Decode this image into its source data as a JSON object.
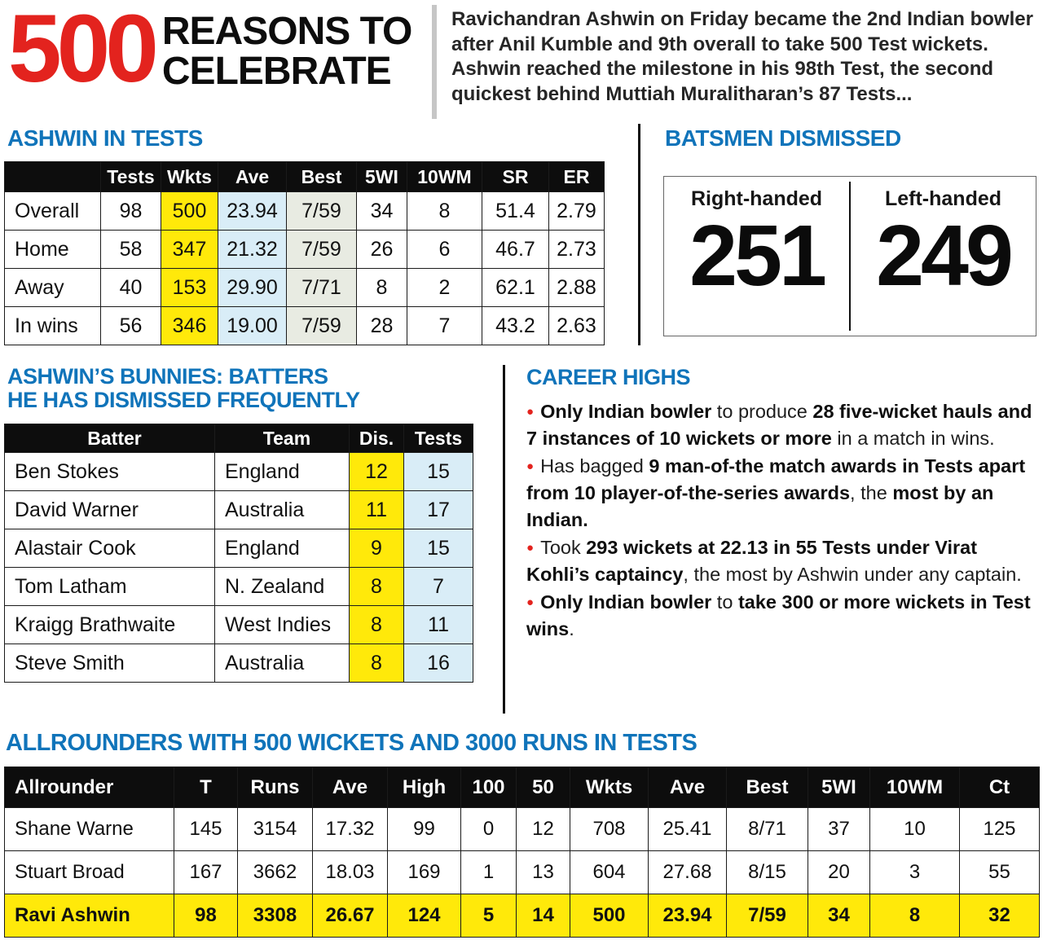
{
  "colors": {
    "red": "#e3231e",
    "blue": "#1074ba",
    "yellow": "#ffe90a",
    "light_blue": "#d9edf7",
    "light_gray": "#e8ebe2",
    "header_black": "#0d0d0d"
  },
  "header": {
    "big_number": "500",
    "title_line1": "REASONS TO",
    "title_line2": "CELEBRATE",
    "intro": "Ravichandran Ashwin on Friday became the 2nd Indian bowler after Anil Kumble and 9th overall to take 500 Test wickets. Ashwin reached the milestone in his 98th Test, the second quickest behind Muttiah Muralitharan’s 87 Tests..."
  },
  "ashwin_tests": {
    "title": "ASHWIN IN TESTS",
    "columns": [
      "",
      "Tests",
      "Wkts",
      "Ave",
      "Best",
      "5WI",
      "10WM",
      "SR",
      "ER"
    ],
    "rows": [
      [
        "Overall",
        "98",
        "500",
        "23.94",
        "7/59",
        "34",
        "8",
        "51.4",
        "2.79"
      ],
      [
        "Home",
        "58",
        "347",
        "21.32",
        "7/59",
        "26",
        "6",
        "46.7",
        "2.73"
      ],
      [
        "Away",
        "40",
        "153",
        "29.90",
        "7/71",
        "8",
        "2",
        "62.1",
        "2.88"
      ],
      [
        "In wins",
        "56",
        "346",
        "19.00",
        "7/59",
        "28",
        "7",
        "43.2",
        "2.63"
      ]
    ]
  },
  "batsmen_dismissed": {
    "title": "BATSMEN DISMISSED",
    "items": [
      {
        "label": "Right-handed",
        "value": "251"
      },
      {
        "label": "Left-handed",
        "value": "249"
      }
    ]
  },
  "bunnies": {
    "title_line1": "ASHWIN’S BUNNIES: BATTERS",
    "title_line2": "HE HAS DISMISSED FREQUENTLY",
    "columns": [
      "Batter",
      "Team",
      "Dis.",
      "Tests"
    ],
    "rows": [
      [
        "Ben Stokes",
        "England",
        "12",
        "15"
      ],
      [
        "David Warner",
        "Australia",
        "11",
        "17"
      ],
      [
        "Alastair Cook",
        "England",
        "9",
        "15"
      ],
      [
        "Tom Latham",
        "N. Zealand",
        "8",
        "7"
      ],
      [
        "Kraigg Brathwaite",
        "West Indies",
        "8",
        "11"
      ],
      [
        "Steve Smith",
        "Australia",
        "8",
        "16"
      ]
    ]
  },
  "career_highs": {
    "title": "CAREER HIGHS",
    "bullets": [
      [
        {
          "t": "Only Indian bowler",
          "b": true
        },
        {
          "t": " to produce ",
          "b": false
        },
        {
          "t": "28 five-wicket hauls and 7 instances of 10 wickets or more",
          "b": true
        },
        {
          "t": " in a match in wins.",
          "b": false
        }
      ],
      [
        {
          "t": "Has bagged ",
          "b": false
        },
        {
          "t": "9 man-of-the match awards in Tests apart from 10 player-of-the-series awards",
          "b": true
        },
        {
          "t": ", the ",
          "b": false
        },
        {
          "t": "most by an Indian.",
          "b": true
        }
      ],
      [
        {
          "t": "Took ",
          "b": false
        },
        {
          "t": "293 wickets at 22.13 in 55 Tests under Virat Kohli’s captaincy",
          "b": true
        },
        {
          "t": ", the most by Ashwin under any captain.",
          "b": false
        }
      ],
      [
        {
          "t": "Only Indian bowler",
          "b": true
        },
        {
          "t": " to ",
          "b": false
        },
        {
          "t": "take 300 or more wickets in Test wins",
          "b": true
        },
        {
          "t": ".",
          "b": false
        }
      ]
    ]
  },
  "allrounders": {
    "title": "ALLROUNDERS WITH 500 WICKETS AND 3000 RUNS IN TESTS",
    "columns": [
      "Allrounder",
      "T",
      "Runs",
      "Ave",
      "High",
      "100",
      "50",
      "Wkts",
      "Ave",
      "Best",
      "5WI",
      "10WM",
      "Ct"
    ],
    "rows": [
      [
        "Shane Warne",
        "145",
        "3154",
        "17.32",
        "99",
        "0",
        "12",
        "708",
        "25.41",
        "8/71",
        "37",
        "10",
        "125"
      ],
      [
        "Stuart Broad",
        "167",
        "3662",
        "18.03",
        "169",
        "1",
        "13",
        "604",
        "27.68",
        "8/15",
        "20",
        "3",
        "55"
      ],
      [
        "Ravi Ashwin",
        "98",
        "3308",
        "26.67",
        "124",
        "5",
        "14",
        "500",
        "23.94",
        "7/59",
        "34",
        "8",
        "32"
      ]
    ],
    "highlight_row": 2
  }
}
